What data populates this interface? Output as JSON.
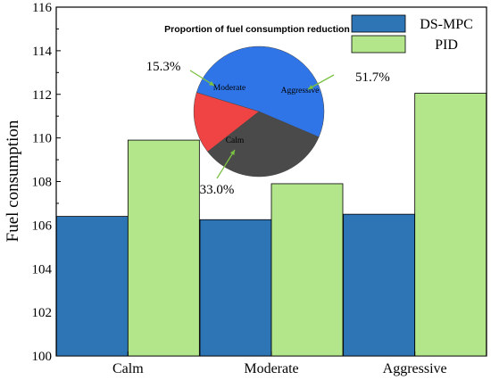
{
  "chart_data": [
    {
      "type": "bar",
      "title": "",
      "xlabel": "",
      "ylabel": "Fuel consumption",
      "ylim": [
        100,
        116
      ],
      "yticks": [
        100,
        102,
        104,
        106,
        108,
        110,
        112,
        114,
        116
      ],
      "categories": [
        "Calm",
        "Moderate",
        "Aggressive"
      ],
      "series": [
        {
          "name": "DS-MPC",
          "values": [
            106.4,
            106.25,
            106.5
          ],
          "color": "#2e75b6"
        },
        {
          "name": "PID",
          "values": [
            109.9,
            107.9,
            112.05
          ],
          "color": "#b3e58a"
        }
      ],
      "legend": "top-right",
      "grid": false
    },
    {
      "type": "pie",
      "title": "Proportion of fuel consumption reduction",
      "slices": [
        {
          "label": "Aggressive",
          "value": 51.7,
          "display": "51.7%",
          "color": "#2f75e8"
        },
        {
          "label": "Calm",
          "value": 33.0,
          "display": "33.0%",
          "color": "#4a4a4a"
        },
        {
          "label": "Moderate",
          "value": 15.3,
          "display": "15.3%",
          "color": "#f04343"
        }
      ],
      "annotation_color": "#7ac142"
    }
  ]
}
